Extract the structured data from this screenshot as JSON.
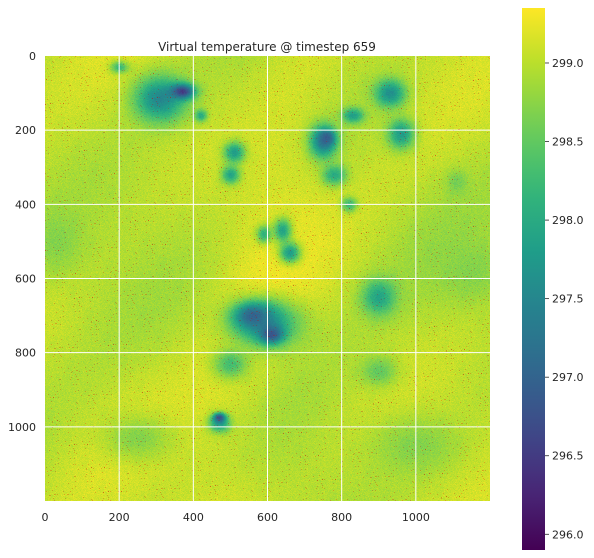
{
  "chart_data": {
    "type": "heatmap",
    "title": "Virtual temperature @ timestep 659",
    "xlabel": "",
    "ylabel": "",
    "xlim": [
      0,
      1200
    ],
    "ylim": [
      1200,
      0
    ],
    "x_ticks": [
      "0",
      "200",
      "400",
      "600",
      "800",
      "1000"
    ],
    "y_ticks": [
      "0",
      "200",
      "400",
      "600",
      "800",
      "1000"
    ],
    "grid": true,
    "colormap": "viridis",
    "colorbar": {
      "range": [
        295.9,
        299.35
      ],
      "ticks": [
        "296.0",
        "296.5",
        "297.0",
        "297.5",
        "298.0",
        "298.5",
        "299.0"
      ]
    },
    "background_value": 299.0,
    "speckle_color": "#cc0000",
    "blobs": [
      {
        "x": 310,
        "y": 115,
        "rx": 85,
        "ry": 75,
        "value": 297.5
      },
      {
        "x": 370,
        "y": 95,
        "rx": 40,
        "ry": 25,
        "value": 296.5
      },
      {
        "x": 200,
        "y": 30,
        "rx": 30,
        "ry": 20,
        "value": 298.2
      },
      {
        "x": 420,
        "y": 160,
        "rx": 20,
        "ry": 20,
        "value": 298.0
      },
      {
        "x": 510,
        "y": 260,
        "rx": 35,
        "ry": 35,
        "value": 297.8
      },
      {
        "x": 500,
        "y": 320,
        "rx": 30,
        "ry": 30,
        "value": 297.9
      },
      {
        "x": 750,
        "y": 230,
        "rx": 45,
        "ry": 55,
        "value": 297.3
      },
      {
        "x": 760,
        "y": 220,
        "rx": 25,
        "ry": 25,
        "value": 296.9
      },
      {
        "x": 830,
        "y": 160,
        "rx": 35,
        "ry": 25,
        "value": 297.8
      },
      {
        "x": 930,
        "y": 100,
        "rx": 50,
        "ry": 45,
        "value": 297.6
      },
      {
        "x": 960,
        "y": 210,
        "rx": 45,
        "ry": 50,
        "value": 297.8
      },
      {
        "x": 780,
        "y": 320,
        "rx": 40,
        "ry": 35,
        "value": 298.0
      },
      {
        "x": 820,
        "y": 400,
        "rx": 25,
        "ry": 25,
        "value": 298.2
      },
      {
        "x": 1110,
        "y": 340,
        "rx": 35,
        "ry": 40,
        "value": 298.6
      },
      {
        "x": 640,
        "y": 470,
        "rx": 30,
        "ry": 40,
        "value": 297.9
      },
      {
        "x": 660,
        "y": 530,
        "rx": 35,
        "ry": 35,
        "value": 297.8
      },
      {
        "x": 590,
        "y": 480,
        "rx": 25,
        "ry": 30,
        "value": 298.1
      },
      {
        "x": 590,
        "y": 720,
        "rx": 115,
        "ry": 80,
        "value": 297.6
      },
      {
        "x": 560,
        "y": 700,
        "rx": 60,
        "ry": 40,
        "value": 297.0
      },
      {
        "x": 610,
        "y": 750,
        "rx": 40,
        "ry": 30,
        "value": 296.8
      },
      {
        "x": 900,
        "y": 650,
        "rx": 55,
        "ry": 60,
        "value": 297.9
      },
      {
        "x": 500,
        "y": 830,
        "rx": 60,
        "ry": 50,
        "value": 298.3
      },
      {
        "x": 470,
        "y": 990,
        "rx": 35,
        "ry": 30,
        "value": 297.8
      },
      {
        "x": 470,
        "y": 975,
        "rx": 20,
        "ry": 15,
        "value": 296.7
      },
      {
        "x": 1150,
        "y": 580,
        "rx": 120,
        "ry": 110,
        "value": 298.7
      },
      {
        "x": 30,
        "y": 500,
        "rx": 90,
        "ry": 110,
        "value": 298.7
      },
      {
        "x": 1000,
        "y": 1050,
        "rx": 150,
        "ry": 100,
        "value": 298.7
      },
      {
        "x": 250,
        "y": 1030,
        "rx": 120,
        "ry": 80,
        "value": 298.7
      },
      {
        "x": 900,
        "y": 850,
        "rx": 60,
        "ry": 50,
        "value": 298.5
      }
    ]
  }
}
